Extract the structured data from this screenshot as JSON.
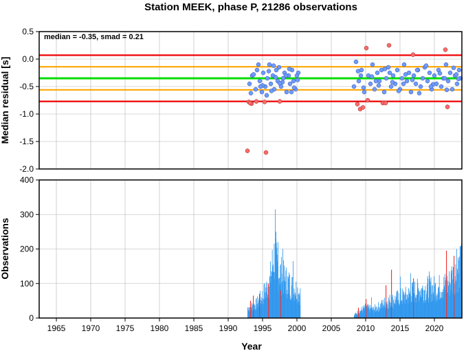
{
  "chart_data": [
    {
      "type": "scatter",
      "title": "Station MEEK, phase P, 21286 observations",
      "annotation": "median = -0.35, smad = 0.21",
      "xlabel": "",
      "ylabel": "Median residual [s]",
      "xlim": [
        1962.5,
        2024.0
      ],
      "ylim": [
        -2.0,
        0.5
      ],
      "yticks": [
        "0.5",
        "0.0",
        "-0.5",
        "-1.0",
        "-1.5",
        "-2.0"
      ],
      "grid": true,
      "reference_lines": [
        {
          "value": -0.35,
          "color": "#00dd00"
        },
        {
          "value": -0.14,
          "color": "#ffa500"
        },
        {
          "value": -0.56,
          "color": "#ffa500"
        },
        {
          "value": 0.07,
          "color": "#ee0000"
        },
        {
          "value": -0.77,
          "color": "#ee0000"
        }
      ],
      "colors": {
        "inlier": "#6f9bff",
        "outlier": "#ff6b6b"
      },
      "outliers": {
        "x": [
          1992.8,
          1993.0,
          1993.4,
          1994.1,
          1995.5,
          1997.5,
          1993.2,
          1995.3,
          2008.8,
          2009.2,
          2009.6,
          2010.1,
          2010.3,
          2012.5,
          2012.9,
          2013.4,
          2016.9,
          2021.6,
          2021.9
        ],
        "y": [
          -1.67,
          -0.78,
          -0.81,
          -0.77,
          -1.7,
          -0.77,
          -0.8,
          -0.78,
          -0.82,
          -0.91,
          -0.88,
          0.2,
          -0.75,
          -0.8,
          -0.8,
          0.25,
          0.08,
          0.17,
          -0.87
        ]
      },
      "inliers": {
        "x": [
          1993.1,
          1993.5,
          1994.0,
          1994.2,
          1994.6,
          1994.9,
          1995.1,
          1995.4,
          1995.7,
          1996.0,
          1996.2,
          1996.5,
          1996.7,
          1997.0,
          1997.2,
          1997.4,
          1997.7,
          1998.0,
          1998.2,
          1998.5,
          1998.8,
          1999.0,
          1999.3,
          1999.5,
          1999.8,
          2000.0,
          2000.2,
          1993.3,
          1994.4,
          1995.0,
          1995.9,
          1996.3,
          1996.9,
          1997.9,
          1998.9,
          1999.6,
          2000.1,
          1993.7,
          1994.7,
          1995.6,
          1996.6,
          1997.5,
          1998.4,
          1999.2,
          2008.3,
          2008.6,
          2009.0,
          2009.4,
          2009.8,
          2010.4,
          2010.7,
          2011.0,
          2011.3,
          2011.7,
          2012.0,
          2012.3,
          2012.7,
          2013.0,
          2013.3,
          2013.7,
          2014.0,
          2014.3,
          2014.6,
          2015.0,
          2015.3,
          2015.6,
          2016.0,
          2016.3,
          2016.6,
          2017.0,
          2017.3,
          2017.6,
          2018.0,
          2018.3,
          2018.6,
          2019.0,
          2019.3,
          2019.6,
          2020.0,
          2020.3,
          2020.6,
          2021.0,
          2021.3,
          2021.7,
          2022.0,
          2022.3,
          2022.6,
          2023.0,
          2023.3,
          2023.6,
          2023.8,
          2008.9,
          2009.7,
          2010.9,
          2011.9,
          2012.8,
          2013.9,
          2014.8,
          2015.8,
          2016.8,
          2017.8,
          2018.8,
          2019.8,
          2020.8,
          2021.8,
          2022.8,
          2023.5,
          2009.3,
          2011.5,
          2013.5,
          2015.5,
          2017.5,
          2019.5,
          2021.5,
          2023.2
        ],
        "y": [
          -0.45,
          -0.3,
          -0.55,
          -0.2,
          -0.4,
          -0.6,
          -0.25,
          -0.5,
          -0.35,
          -0.1,
          -0.45,
          -0.3,
          -0.55,
          -0.2,
          -0.4,
          -0.15,
          -0.5,
          -0.35,
          -0.25,
          -0.6,
          -0.3,
          -0.45,
          -0.2,
          -0.4,
          -0.55,
          -0.3,
          -0.25,
          -0.62,
          -0.1,
          -0.48,
          -0.22,
          -0.58,
          -0.33,
          -0.42,
          -0.18,
          -0.52,
          -0.38,
          -0.28,
          -0.5,
          -0.66,
          -0.12,
          -0.44,
          -0.3,
          -0.6,
          -0.5,
          -0.05,
          -0.4,
          -0.2,
          -0.6,
          -0.3,
          -0.45,
          -0.1,
          -0.55,
          -0.25,
          -0.4,
          -0.2,
          -0.6,
          -0.35,
          -0.15,
          -0.5,
          -0.3,
          -0.45,
          -0.2,
          -0.55,
          -0.35,
          -0.1,
          -0.4,
          -0.25,
          -0.6,
          -0.3,
          -0.45,
          -0.2,
          -0.5,
          -0.35,
          -0.15,
          -0.4,
          -0.25,
          -0.55,
          -0.3,
          -0.45,
          -0.2,
          -0.5,
          -0.35,
          -0.1,
          -0.4,
          -0.25,
          -0.55,
          -0.3,
          -0.45,
          -0.2,
          -0.35,
          -0.22,
          -0.52,
          -0.32,
          -0.48,
          -0.18,
          -0.42,
          -0.58,
          -0.28,
          -0.38,
          -0.62,
          -0.12,
          -0.46,
          -0.26,
          -0.56,
          -0.16,
          -0.36,
          -0.3,
          -0.4,
          -0.25,
          -0.45,
          -0.2,
          -0.5,
          -0.35,
          -0.28
        ]
      }
    },
    {
      "type": "bar",
      "xlabel": "Year",
      "ylabel": "Observations",
      "xlim": [
        1962.5,
        2024.0
      ],
      "ylim": [
        0,
        400
      ],
      "xticks": [
        "1965",
        "1970",
        "1975",
        "1980",
        "1985",
        "1990",
        "1995",
        "2000",
        "2005",
        "2010",
        "2015",
        "2020"
      ],
      "yticks": [
        "0",
        "100",
        "200",
        "300",
        "400"
      ],
      "grid": true,
      "colors": {
        "normal": "#3399ee",
        "highlight": "#ee3333"
      },
      "segments": [
        {
          "x_start": 1992.8,
          "x_end": 2000.5,
          "shape": [
            [
              1992.8,
              35
            ],
            [
              1994.0,
              45
            ],
            [
              1995.0,
              75
            ],
            [
              1996.0,
              120
            ],
            [
              1996.6,
              210
            ],
            [
              1997.3,
              160
            ],
            [
              1998.0,
              135
            ],
            [
              1999.0,
              110
            ],
            [
              2000.0,
              95
            ],
            [
              2000.5,
              80
            ]
          ]
        },
        {
          "x_start": 2008.3,
          "x_end": 2024.0,
          "shape": [
            [
              2008.3,
              10
            ],
            [
              2009.0,
              22
            ],
            [
              2010.0,
              35
            ],
            [
              2011.0,
              28
            ],
            [
              2012.0,
              40
            ],
            [
              2013.0,
              55
            ],
            [
              2014.0,
              60
            ],
            [
              2015.0,
              70
            ],
            [
              2016.0,
              75
            ],
            [
              2017.0,
              90
            ],
            [
              2018.0,
              95
            ],
            [
              2019.0,
              100
            ],
            [
              2020.0,
              100
            ],
            [
              2021.0,
              105
            ],
            [
              2022.0,
              115
            ],
            [
              2023.0,
              150
            ],
            [
              2024.0,
              180
            ]
          ]
        }
      ],
      "peaks": {
        "x": [
          1996.8,
          1996.9,
          1997.2,
          1997.9,
          1999.4,
          2010.8,
          2015.0,
          2016.5,
          2019.2,
          2022.5,
          2023.2,
          2023.7,
          2023.9
        ],
        "y": [
          315,
          250,
          220,
          200,
          165,
          60,
          120,
          130,
          135,
          150,
          200,
          205,
          215
        ]
      },
      "highlights": {
        "x": [
          1993.2,
          1993.6,
          1994.5,
          1995.8,
          1997.6,
          2008.9,
          2010.0,
          2012.9,
          2013.7,
          2016.9,
          2021.7,
          2022.8
        ],
        "y": [
          50,
          65,
          70,
          100,
          80,
          30,
          55,
          95,
          140,
          115,
          195,
          180
        ]
      }
    }
  ]
}
